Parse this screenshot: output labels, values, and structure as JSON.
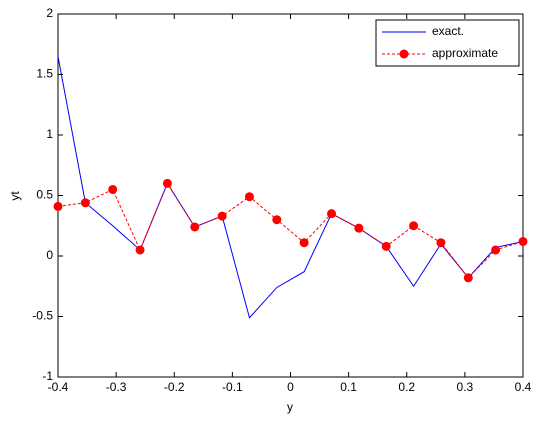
{
  "chart_data": {
    "type": "line",
    "x": [
      -0.4,
      -0.3529,
      -0.3059,
      -0.2588,
      -0.2118,
      -0.1647,
      -0.1176,
      -0.0706,
      -0.0235,
      0.0235,
      0.0706,
      0.1176,
      0.1647,
      0.2118,
      0.2588,
      0.3059,
      0.3529,
      0.4
    ],
    "series": [
      {
        "name": "exact.",
        "color": "#0000ff",
        "style": "solid",
        "marker": false,
        "values": [
          1.65,
          0.44,
          0.25,
          0.05,
          0.6,
          0.24,
          0.33,
          -0.51,
          -0.26,
          -0.13,
          0.35,
          0.23,
          0.08,
          -0.25,
          0.1,
          -0.18,
          0.07,
          0.12
        ]
      },
      {
        "name": "approximate",
        "color": "#ff0000",
        "style": "dashed",
        "marker": true,
        "values": [
          0.41,
          0.44,
          0.55,
          0.05,
          0.6,
          0.24,
          0.33,
          0.49,
          0.3,
          0.11,
          0.35,
          0.23,
          0.08,
          0.25,
          0.11,
          -0.18,
          0.05,
          0.12
        ]
      }
    ],
    "xlabel": "y",
    "ylabel": "yt",
    "xlim": [
      -0.4,
      0.4
    ],
    "xticks": [
      -0.4,
      -0.3,
      -0.2,
      -0.1,
      0,
      0.1,
      0.2,
      0.3,
      0.4
    ],
    "ylim": [
      -1,
      2
    ],
    "yticks": [
      -1,
      -0.5,
      0,
      0.5,
      1,
      1.5,
      2
    ],
    "grid": false,
    "legend": "northeast"
  }
}
